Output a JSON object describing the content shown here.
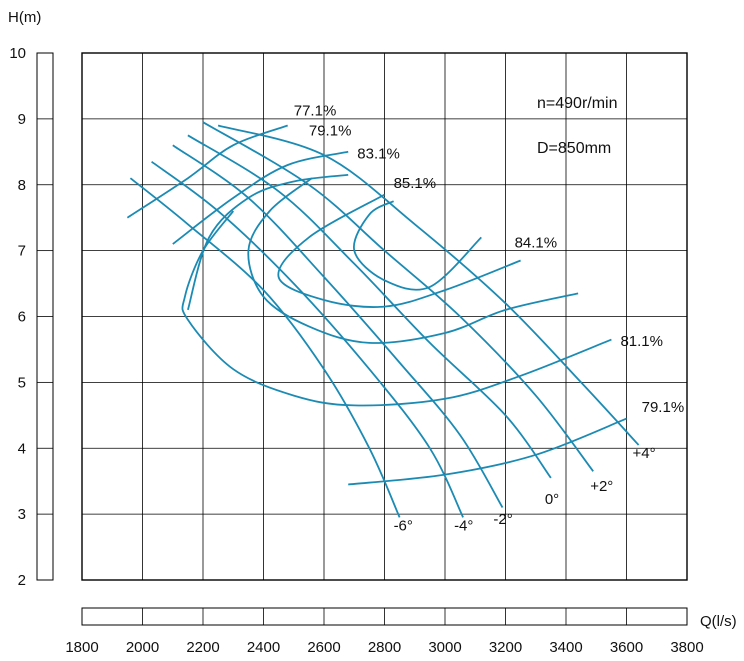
{
  "chart_data": {
    "type": "line",
    "title": "",
    "xlabel": "Q(l/s)",
    "ylabel": "H(m)",
    "xlim": [
      1800,
      3800
    ],
    "ylim": [
      2,
      10
    ],
    "x_ticks": [
      1800,
      2000,
      2200,
      2400,
      2600,
      2800,
      3000,
      3200,
      3400,
      3600,
      3800
    ],
    "y_ticks": [
      2,
      3,
      4,
      5,
      6,
      7,
      8,
      9,
      10
    ],
    "grid": true,
    "line_color": "#1b8bb4",
    "annotations": [
      "n=490r/min",
      "D=850mm"
    ],
    "blade_angle_curves": [
      {
        "name": "-6°",
        "label_at": [
          2830,
          2.75
        ],
        "points": [
          [
            1960,
            8.1
          ],
          [
            2150,
            7.4
          ],
          [
            2400,
            6.4
          ],
          [
            2600,
            5.2
          ],
          [
            2750,
            4.0
          ],
          [
            2850,
            2.95
          ]
        ]
      },
      {
        "name": "-4°",
        "label_at": [
          3030,
          2.75
        ],
        "points": [
          [
            2030,
            8.35
          ],
          [
            2250,
            7.6
          ],
          [
            2500,
            6.5
          ],
          [
            2750,
            5.2
          ],
          [
            2950,
            4.0
          ],
          [
            3060,
            2.95
          ]
        ]
      },
      {
        "name": "-2°",
        "label_at": [
          3160,
          2.85
        ],
        "points": [
          [
            2100,
            8.6
          ],
          [
            2350,
            7.8
          ],
          [
            2600,
            6.6
          ],
          [
            2850,
            5.3
          ],
          [
            3050,
            4.2
          ],
          [
            3190,
            3.1
          ]
        ]
      },
      {
        "name": "0°",
        "label_at": [
          3330,
          3.15
        ],
        "points": [
          [
            2150,
            8.75
          ],
          [
            2450,
            7.9
          ],
          [
            2700,
            6.8
          ],
          [
            2950,
            5.6
          ],
          [
            3200,
            4.5
          ],
          [
            3350,
            3.55
          ]
        ]
      },
      {
        "name": "+2°",
        "label_at": [
          3480,
          3.35
        ],
        "points": [
          [
            2200,
            8.95
          ],
          [
            2550,
            8.0
          ],
          [
            2800,
            7.0
          ],
          [
            3050,
            6.0
          ],
          [
            3300,
            4.8
          ],
          [
            3490,
            3.65
          ]
        ]
      },
      {
        "name": "+4°",
        "label_at": [
          3620,
          3.85
        ],
        "points": [
          [
            2250,
            8.9
          ],
          [
            2600,
            8.45
          ],
          [
            2900,
            7.4
          ],
          [
            3200,
            6.2
          ],
          [
            3450,
            5.0
          ],
          [
            3640,
            4.05
          ]
        ]
      }
    ],
    "efficiency_curves": [
      {
        "name": "77.1%",
        "label_at": [
          2500,
          9.05
        ],
        "closed": false,
        "points": [
          [
            1950,
            7.5
          ],
          [
            2150,
            8.1
          ],
          [
            2300,
            8.6
          ],
          [
            2480,
            8.9
          ]
        ]
      },
      {
        "name": "79.1%",
        "label_at": [
          2550,
          8.75
        ],
        "closed": false,
        "points": [
          [
            2100,
            7.1
          ],
          [
            2300,
            7.8
          ],
          [
            2480,
            8.3
          ],
          [
            2680,
            8.5
          ]
        ]
      },
      {
        "name": "79.1%",
        "label_at": [
          3650,
          4.55
        ],
        "closed": false,
        "points": [
          [
            2680,
            3.45
          ],
          [
            3000,
            3.6
          ],
          [
            3300,
            3.9
          ],
          [
            3600,
            4.45
          ]
        ]
      },
      {
        "name": "83.1%",
        "label_at": [
          2710,
          8.4
        ],
        "closed": false,
        "points": [
          [
            2150,
            6.1
          ],
          [
            2220,
            7.2
          ],
          [
            2350,
            7.8
          ],
          [
            2500,
            8.05
          ],
          [
            2680,
            8.15
          ]
        ]
      },
      {
        "name": "81.1%",
        "label_at": [
          3580,
          5.55
        ],
        "closed": false,
        "points": [
          [
            2300,
            7.6
          ],
          [
            2200,
            7.0
          ],
          [
            2140,
            6.3
          ],
          [
            2150,
            5.95
          ],
          [
            2300,
            5.2
          ],
          [
            2500,
            4.8
          ],
          [
            2700,
            4.65
          ],
          [
            3000,
            4.75
          ],
          [
            3250,
            5.1
          ],
          [
            3550,
            5.65
          ]
        ]
      },
      {
        "name": "84.1%",
        "label_at": [
          3230,
          7.05
        ],
        "closed": false,
        "points": [
          [
            2560,
            8.1
          ],
          [
            2420,
            7.6
          ],
          [
            2350,
            7.0
          ],
          [
            2400,
            6.3
          ],
          [
            2550,
            5.85
          ],
          [
            2750,
            5.6
          ],
          [
            3000,
            5.75
          ],
          [
            3200,
            6.1
          ],
          [
            3440,
            6.35
          ]
        ]
      },
      {
        "name": "85.1%",
        "label_at": [
          2830,
          7.95
        ],
        "closed": false,
        "points": [
          [
            2800,
            7.85
          ],
          [
            2550,
            7.2
          ],
          [
            2450,
            6.6
          ],
          [
            2600,
            6.25
          ],
          [
            2800,
            6.15
          ],
          [
            3000,
            6.4
          ],
          [
            3250,
            6.85
          ]
        ]
      },
      {
        "name": "",
        "label_at": [
          0,
          0
        ],
        "closed": false,
        "points": [
          [
            2830,
            7.75
          ],
          [
            2750,
            7.55
          ],
          [
            2700,
            7.0
          ],
          [
            2800,
            6.55
          ],
          [
            2950,
            6.45
          ],
          [
            3120,
            7.2
          ]
        ]
      }
    ]
  }
}
